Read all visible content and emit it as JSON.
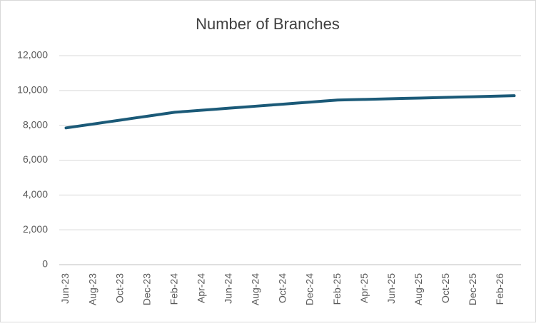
{
  "chart_data": {
    "type": "line",
    "title": "Number of Branches",
    "categories": [
      "Jun-23",
      null,
      "Aug-23",
      null,
      "Oct-23",
      null,
      "Dec-23",
      null,
      "Feb-24",
      null,
      "Apr-24",
      null,
      "Jun-24",
      null,
      "Aug-24",
      null,
      "Oct-24",
      null,
      "Dec-24",
      null,
      "Feb-25",
      null,
      "Apr-25",
      null,
      "Jun-25",
      null,
      "Aug-25",
      null,
      "Oct-25",
      null,
      "Dec-25",
      null,
      "Feb-26",
      null
    ],
    "series": [
      {
        "name": "Number of Branches",
        "color": "#1b5a78",
        "values": [
          7850,
          7963,
          8075,
          8188,
          8300,
          8413,
          8525,
          8638,
          8750,
          8808,
          8867,
          8925,
          8983,
          9042,
          9100,
          9158,
          9217,
          9275,
          9333,
          9392,
          9450,
          9469,
          9488,
          9508,
          9527,
          9546,
          9565,
          9585,
          9604,
          9623,
          9642,
          9662,
          9681,
          9700
        ]
      }
    ],
    "ylim": [
      0,
      12000
    ],
    "yticks": [
      0,
      {
        "value": 2000,
        "label": "2,000"
      },
      {
        "value": 4000,
        "label": "4,000"
      },
      {
        "value": 6000,
        "label": "6,000"
      },
      {
        "value": 8000,
        "label": "8,000"
      },
      {
        "value": 10000,
        "label": "10,000"
      },
      {
        "value": 12000,
        "label": "12,000"
      }
    ],
    "grid": true
  }
}
